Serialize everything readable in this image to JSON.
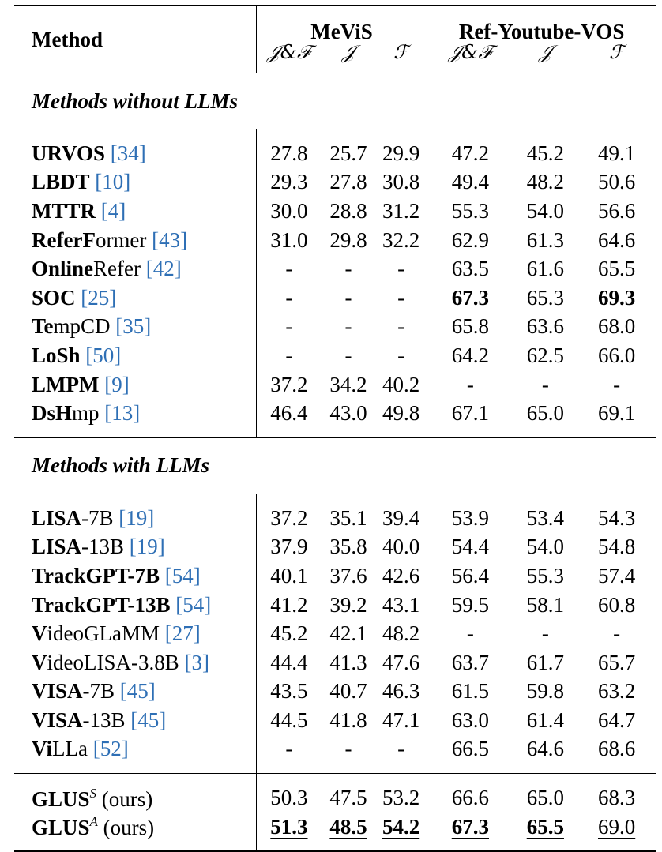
{
  "header": {
    "method_label": "Method",
    "group1": "MeViS",
    "group2": "Ref-Youtube-VOS",
    "metrics": [
      "𝒥&ℱ",
      "𝒥",
      "ℱ"
    ]
  },
  "sections": [
    {
      "title": "Methods without LLMs",
      "rows": [
        {
          "name": "URVOS",
          "ref": "[34]",
          "vals": [
            "27.8",
            "25.7",
            "29.9",
            "47.2",
            "45.2",
            "49.1"
          ]
        },
        {
          "name": "LBDT",
          "ref": "[10]",
          "vals": [
            "29.3",
            "27.8",
            "30.8",
            "49.4",
            "48.2",
            "50.6"
          ]
        },
        {
          "name": "MTTR",
          "ref": "[4]",
          "vals": [
            "30.0",
            "28.8",
            "31.2",
            "55.3",
            "54.0",
            "56.6"
          ]
        },
        {
          "name": "ReferFormer",
          "ref": "[43]",
          "vals": [
            "31.0",
            "29.8",
            "32.2",
            "62.9",
            "61.3",
            "64.6"
          ]
        },
        {
          "name": "OnlineRefer",
          "ref": "[42]",
          "vals": [
            "-",
            "-",
            "-",
            "63.5",
            "61.6",
            "65.5"
          ]
        },
        {
          "name": "SOC",
          "ref": "[25]",
          "vals": [
            "-",
            "-",
            "-",
            "67.3",
            "65.3",
            "69.3"
          ],
          "bold": [
            3,
            5
          ]
        },
        {
          "name": "TempCD",
          "ref": "[35]",
          "vals": [
            "-",
            "-",
            "-",
            "65.8",
            "63.6",
            "68.0"
          ]
        },
        {
          "name": "LoSh",
          "ref": "[50]",
          "vals": [
            "-",
            "-",
            "-",
            "64.2",
            "62.5",
            "66.0"
          ]
        },
        {
          "name": "LMPM",
          "ref": "[9]",
          "vals": [
            "37.2",
            "34.2",
            "40.2",
            "-",
            "-",
            "-"
          ]
        },
        {
          "name": "DsHmp",
          "ref": "[13]",
          "vals": [
            "46.4",
            "43.0",
            "49.8",
            "67.1",
            "65.0",
            "69.1"
          ]
        }
      ]
    },
    {
      "title": "Methods with LLMs",
      "rows": [
        {
          "name": "LISA-7B",
          "ref": "[19]",
          "vals": [
            "37.2",
            "35.1",
            "39.4",
            "53.9",
            "53.4",
            "54.3"
          ]
        },
        {
          "name": "LISA-13B",
          "ref": "[19]",
          "vals": [
            "37.9",
            "35.8",
            "40.0",
            "54.4",
            "54.0",
            "54.8"
          ]
        },
        {
          "name": "TrackGPT-7B",
          "ref": "[54]",
          "vals": [
            "40.1",
            "37.6",
            "42.6",
            "56.4",
            "55.3",
            "57.4"
          ]
        },
        {
          "name": "TrackGPT-13B",
          "ref": "[54]",
          "vals": [
            "41.2",
            "39.2",
            "43.1",
            "59.5",
            "58.1",
            "60.8"
          ]
        },
        {
          "name": "VideoGLaMM",
          "ref": "[27]",
          "vals": [
            "45.2",
            "42.1",
            "48.2",
            "-",
            "-",
            "-"
          ]
        },
        {
          "name": "VideoLISA-3.8B",
          "ref": "[3]",
          "vals": [
            "44.4",
            "41.3",
            "47.6",
            "63.7",
            "61.7",
            "65.7"
          ]
        },
        {
          "name": "VISA-7B",
          "ref": "[45]",
          "vals": [
            "43.5",
            "40.7",
            "46.3",
            "61.5",
            "59.8",
            "63.2"
          ]
        },
        {
          "name": "VISA-13B",
          "ref": "[45]",
          "vals": [
            "44.5",
            "41.8",
            "47.1",
            "63.0",
            "61.4",
            "64.7"
          ]
        },
        {
          "name": "ViLLa",
          "ref": "[52]",
          "vals": [
            "-",
            "-",
            "-",
            "66.5",
            "64.6",
            "68.6"
          ]
        }
      ]
    }
  ],
  "ours": [
    {
      "name": "GLUS",
      "sup": "S",
      "suffix": "(ours)",
      "vals": [
        "50.3",
        "47.5",
        "53.2",
        "66.6",
        "65.0",
        "68.3"
      ]
    },
    {
      "name": "GLUS",
      "sup": "A",
      "suffix": "(ours)",
      "vals": [
        "51.3",
        "48.5",
        "54.2",
        "67.3",
        "65.5",
        "69.0"
      ],
      "bold": [
        0,
        1,
        2,
        3,
        4
      ],
      "underline": [
        0,
        1,
        2,
        3,
        4,
        5
      ]
    }
  ]
}
